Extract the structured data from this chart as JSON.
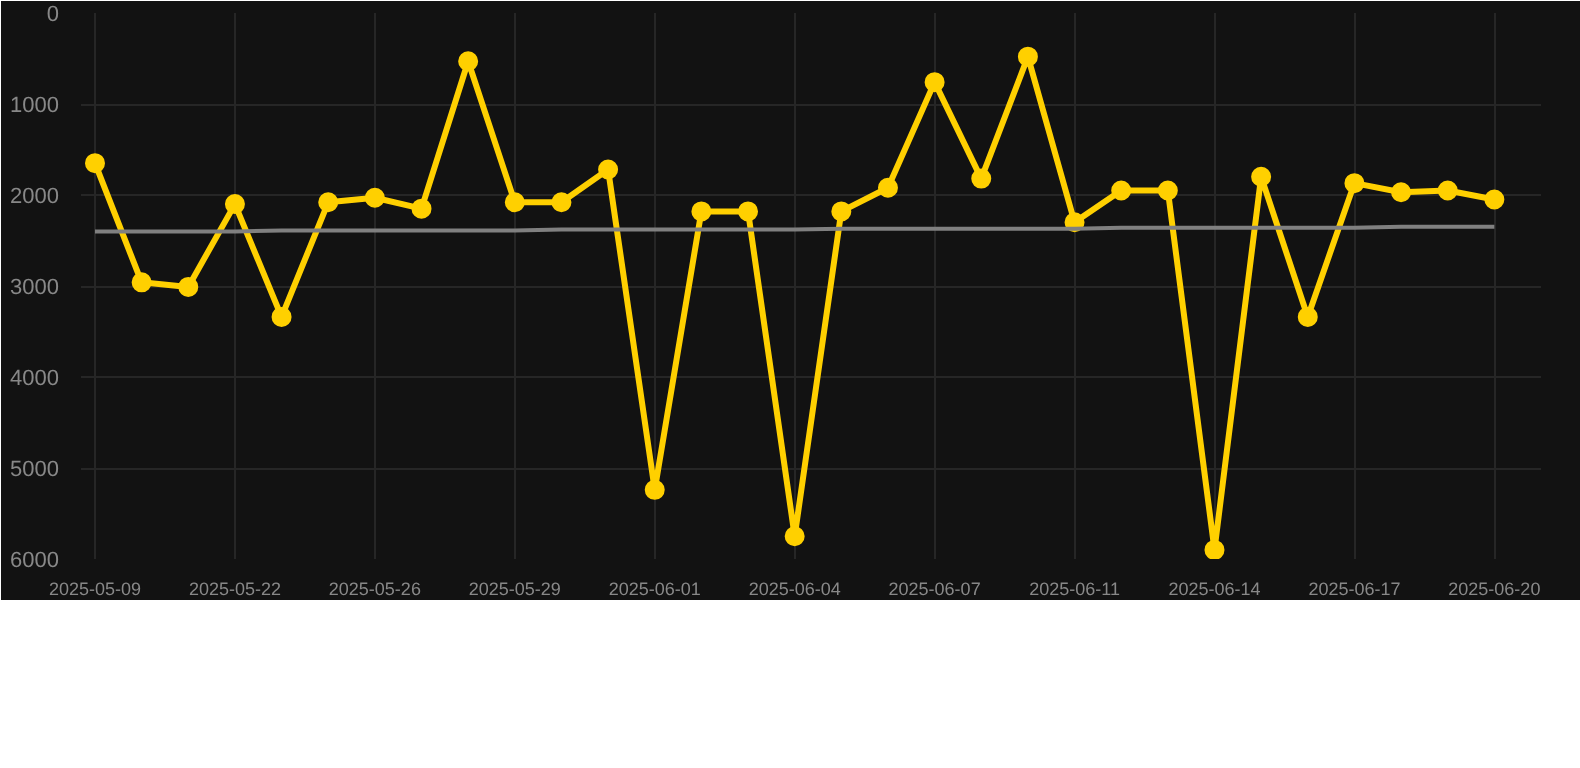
{
  "chart_data": {
    "type": "line",
    "categories": [
      "2025-05-09",
      null,
      null,
      "2025-05-22",
      null,
      null,
      "2025-05-26",
      null,
      null,
      "2025-05-29",
      null,
      null,
      "2025-06-01",
      null,
      null,
      "2025-06-04",
      null,
      null,
      "2025-06-07",
      null,
      null,
      "2025-06-11",
      null,
      null,
      "2025-06-14",
      null,
      null,
      "2025-06-17",
      null,
      null,
      "2025-06-20"
    ],
    "series": [
      {
        "color": "#ffd000",
        "values": [
          1650,
          2960,
          3010,
          2100,
          3340,
          2080,
          2030,
          2150,
          530,
          2080,
          2080,
          1720,
          5240,
          2180,
          2180,
          5750,
          2180,
          1920,
          760,
          1820,
          480,
          2300,
          1950,
          1950,
          5900,
          1800,
          3340,
          1870,
          1970,
          1950,
          2050
        ]
      },
      {
        "type": "line",
        "color": "#808080",
        "marker": "none",
        "values": [
          2400,
          2400,
          2400,
          2400,
          2390,
          2390,
          2390,
          2390,
          2390,
          2390,
          2380,
          2380,
          2380,
          2380,
          2380,
          2380,
          2370,
          2370,
          2370,
          2370,
          2370,
          2370,
          2360,
          2360,
          2360,
          2360,
          2360,
          2360,
          2350,
          2350,
          2350
        ]
      }
    ],
    "ylim": [
      6000,
      0
    ],
    "yticks": [
      0,
      1000,
      2000,
      3000,
      4000,
      5000,
      6000
    ],
    "grid": true,
    "marker": "circle"
  }
}
